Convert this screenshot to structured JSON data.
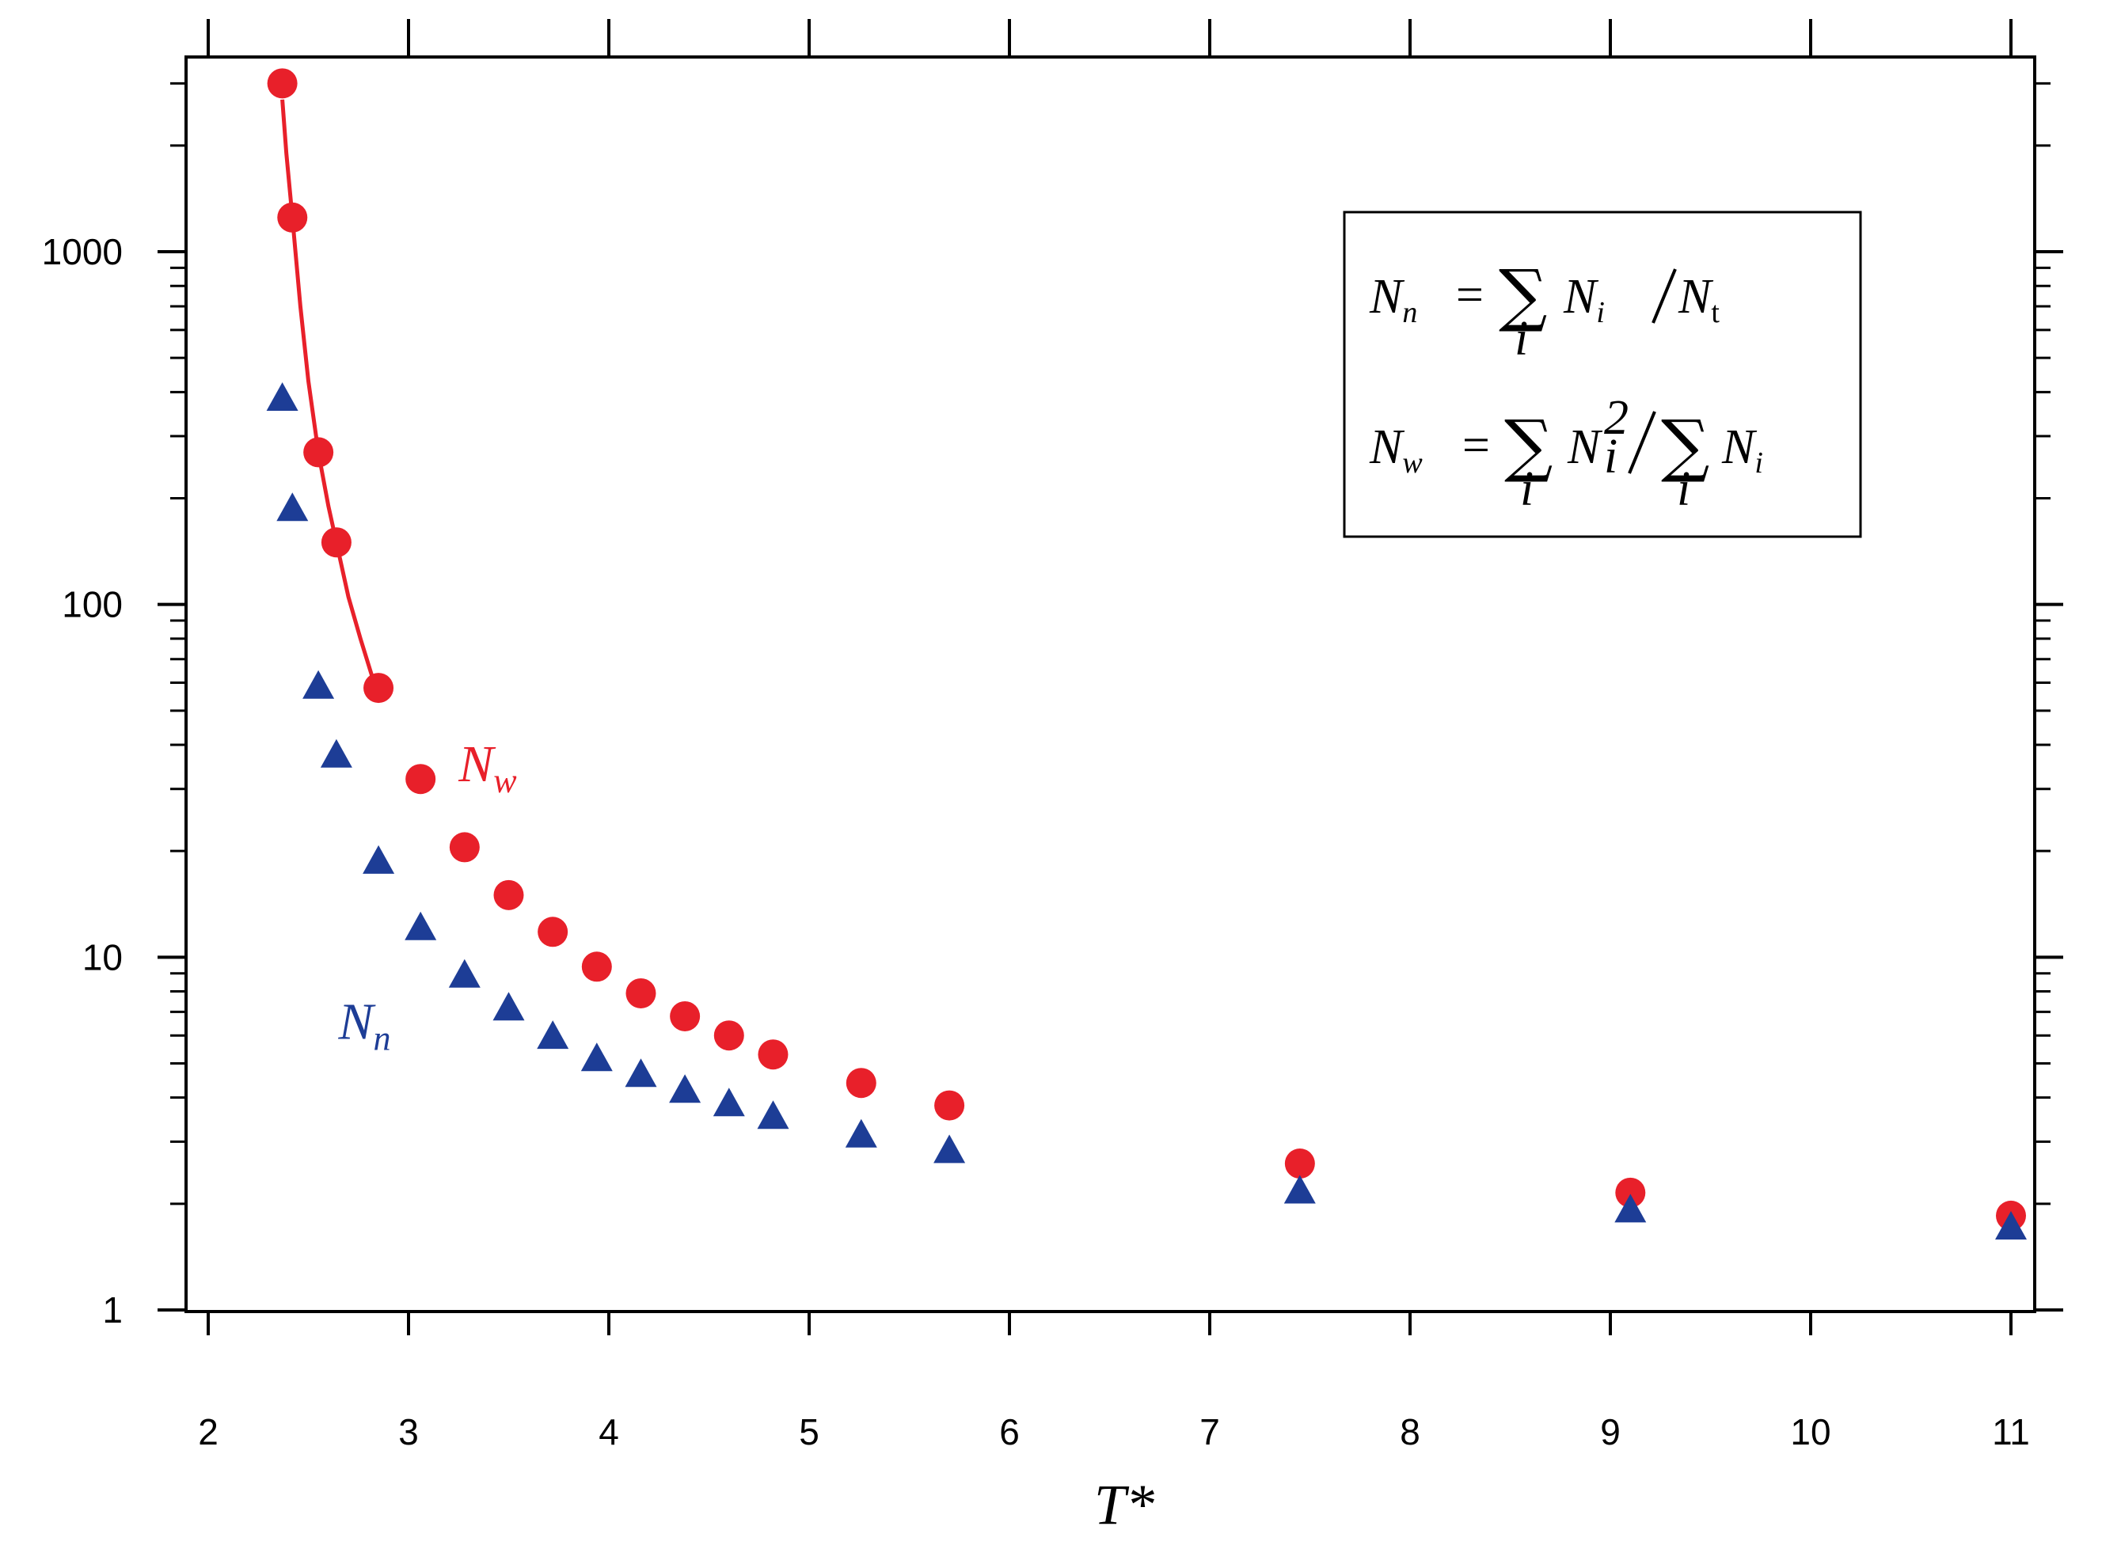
{
  "chart_data": {
    "type": "scatter",
    "xlabel": "T*",
    "ylabel": "",
    "xlim": [
      1.9,
      11.1
    ],
    "ylim": [
      1,
      3500
    ],
    "y_scale": "log",
    "x_ticks": [
      2,
      3,
      4,
      5,
      6,
      7,
      8,
      9,
      10,
      11
    ],
    "y_ticks": [
      1,
      10,
      100,
      1000
    ],
    "grid": false,
    "series": [
      {
        "name": "Nw",
        "color": "#e8202a",
        "marker": "circle",
        "x": [
          2.37,
          2.42,
          2.55,
          2.64,
          2.85,
          3.06,
          3.28,
          3.5,
          3.72,
          3.94,
          4.16,
          4.38,
          4.6,
          4.82,
          5.26,
          5.7,
          7.45,
          9.1,
          11.0
        ],
        "y": [
          3000,
          1250,
          270,
          150,
          58,
          32,
          20.5,
          15,
          11.8,
          9.4,
          7.9,
          6.8,
          6.0,
          5.3,
          4.4,
          3.8,
          2.6,
          2.15,
          1.85
        ]
      },
      {
        "name": "Nn",
        "color": "#1d3d96",
        "marker": "triangle",
        "x": [
          2.37,
          2.42,
          2.55,
          2.64,
          2.85,
          3.06,
          3.28,
          3.5,
          3.72,
          3.94,
          4.16,
          4.38,
          4.6,
          4.82,
          5.26,
          5.7,
          7.45,
          9.1,
          11.0
        ],
        "y": [
          380,
          185,
          58,
          37,
          18.5,
          12,
          8.8,
          7.1,
          5.9,
          5.1,
          4.6,
          4.15,
          3.8,
          3.5,
          3.1,
          2.8,
          2.15,
          1.9,
          1.7
        ]
      }
    ],
    "fit_curve": {
      "series": "Nw",
      "color": "#e8202a",
      "x": [
        2.37,
        2.39,
        2.42,
        2.46,
        2.5,
        2.55,
        2.6,
        2.64,
        2.7,
        2.76,
        2.82
      ],
      "y": [
        2700,
        1900,
        1250,
        700,
        430,
        270,
        190,
        150,
        105,
        80,
        62
      ]
    },
    "legend": {
      "placement": "top-right",
      "formula1": {
        "lhs": "N",
        "lhs_sub": "n",
        "sum_sub": "i",
        "term": "N",
        "term_sub": "i",
        "den": "N",
        "den_sub": "t"
      },
      "formula2": {
        "lhs": "N",
        "lhs_sub": "w",
        "sum_sub": "i",
        "term": "N",
        "term_sub": "i",
        "term_sup": "2",
        "sum2_sub": "i",
        "den": "N",
        "den_sub": "i"
      }
    },
    "series_labels": [
      {
        "main": "N",
        "sub": "w",
        "color": "#e8202a"
      },
      {
        "main": "N",
        "sub": "n",
        "color": "#1d3d96"
      }
    ],
    "annotation_positions_data": {
      "Nw_label": {
        "x": 3.25,
        "y": 35
      },
      "Nn_label": {
        "x": 2.65,
        "y": 6.5
      }
    }
  }
}
